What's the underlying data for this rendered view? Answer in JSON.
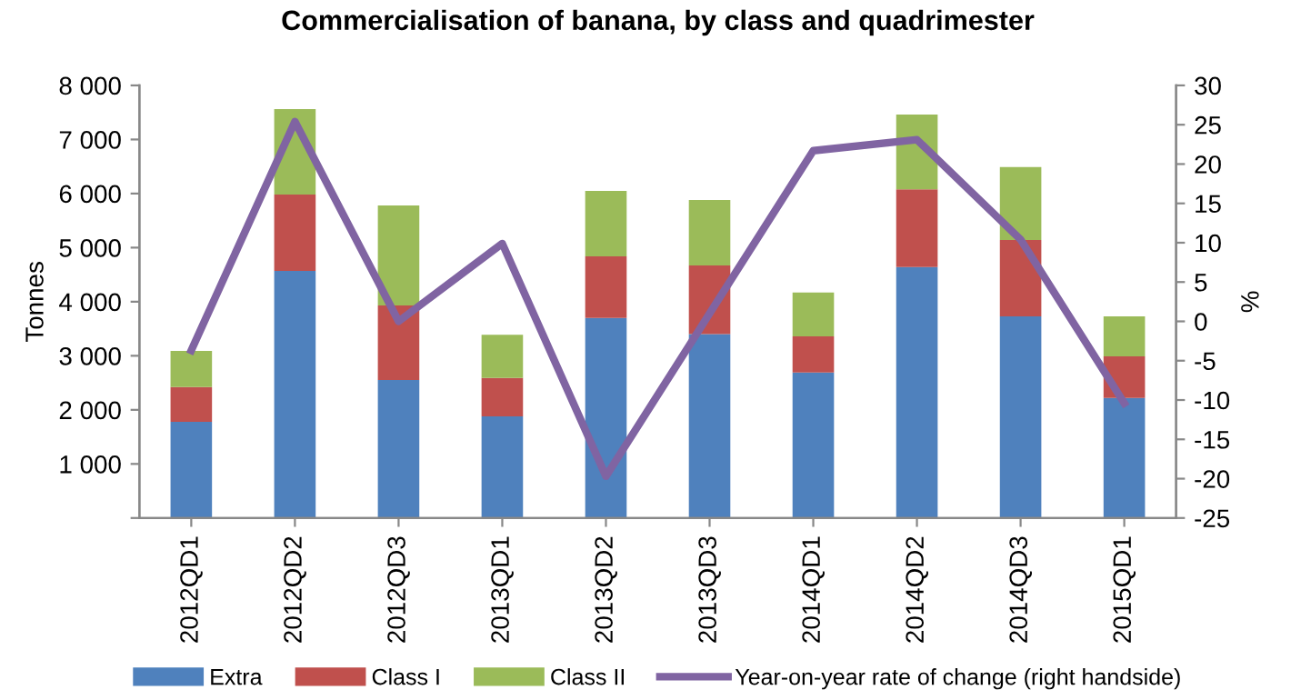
{
  "chart_data": {
    "type": "bar",
    "stacked": true,
    "title": "Commercialisation of banana, by class and quadrimester",
    "ylabel": "Tonnes",
    "y2label": "%",
    "categories": [
      "2012QD1",
      "2012QD2",
      "2012QD3",
      "2013QD1",
      "2013QD2",
      "2013QD3",
      "2014QD1",
      "2014QD2",
      "2014QD3",
      "2015QD1"
    ],
    "series": [
      {
        "name": "Extra",
        "color": "#4f81bd",
        "values": [
          1780,
          4570,
          2550,
          1880,
          3700,
          3400,
          2690,
          4640,
          3730,
          2220
        ]
      },
      {
        "name": "Class I",
        "color": "#c0504d",
        "values": [
          640,
          1410,
          1380,
          710,
          1140,
          1270,
          670,
          1440,
          1410,
          770
        ]
      },
      {
        "name": "Class II",
        "color": "#9bbb59",
        "values": [
          670,
          1580,
          1850,
          800,
          1210,
          1210,
          810,
          1380,
          1350,
          740
        ]
      },
      {
        "name": "Year-on-year rate of change (right handside)",
        "type": "line",
        "axis": "y2",
        "color": "#8064a2",
        "values": [
          -3.7,
          25.4,
          0,
          9.9,
          -19.7,
          1,
          21.7,
          23.1,
          10.4,
          -10.4
        ]
      }
    ],
    "ylim": [
      0,
      8000
    ],
    "yticks": [
      {
        "value": 0,
        "label": null
      },
      {
        "value": 1000,
        "label": "1 000"
      },
      {
        "value": 2000,
        "label": "2 000"
      },
      {
        "value": 3000,
        "label": "3 000"
      },
      {
        "value": 4000,
        "label": "4 000"
      },
      {
        "value": 5000,
        "label": "5 000"
      },
      {
        "value": 6000,
        "label": "6 000"
      },
      {
        "value": 7000,
        "label": "7 000"
      },
      {
        "value": 8000,
        "label": "8 000"
      }
    ],
    "y2lim": [
      -25,
      30
    ],
    "y2ticks": [
      -25,
      -20,
      -15,
      -10,
      -5,
      0,
      5,
      10,
      15,
      20,
      25,
      30
    ],
    "grid": false,
    "legend": "bottom",
    "marker": "none",
    "line_style": "solid"
  }
}
